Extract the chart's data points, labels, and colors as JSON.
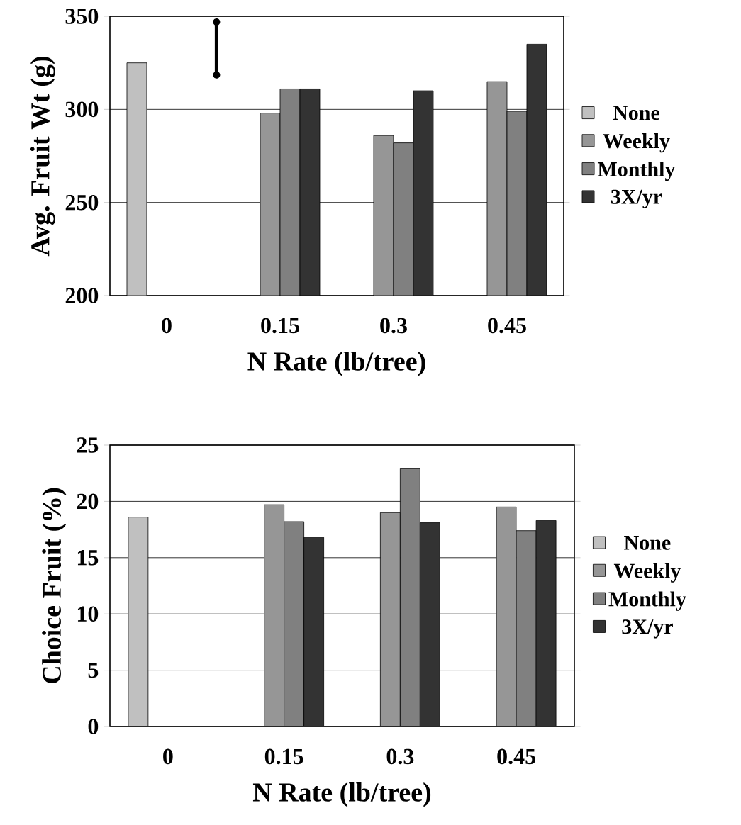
{
  "chart_data": [
    {
      "type": "bar",
      "xlabel": "N Rate (lb/tree)",
      "ylabel": "Avg. Fruit Wt (g)",
      "categories": [
        "0",
        "0.15",
        "0.3",
        "0.45"
      ],
      "series": [
        {
          "name": "None",
          "color": "#c0c0c0",
          "values": [
            325,
            null,
            null,
            null
          ]
        },
        {
          "name": "Weekly",
          "color": "#969696",
          "values": [
            null,
            298,
            286,
            315
          ]
        },
        {
          "name": "Monthly",
          "color": "#808080",
          "values": [
            null,
            311,
            282,
            299
          ]
        },
        {
          "name": "3X/yr",
          "color": "#333333",
          "values": [
            null,
            311,
            310,
            335
          ]
        }
      ],
      "ylim": [
        200,
        350
      ],
      "yticks": [
        200,
        250,
        300,
        350
      ],
      "grid": "y",
      "legend": "right"
    },
    {
      "type": "bar",
      "xlabel": "N Rate (lb/tree)",
      "ylabel": "Choice Fruit (%)",
      "categories": [
        "0",
        "0.15",
        "0.3",
        "0.45"
      ],
      "series": [
        {
          "name": "None",
          "color": "#c0c0c0",
          "values": [
            18.6,
            null,
            null,
            null
          ]
        },
        {
          "name": "Weekly",
          "color": "#969696",
          "values": [
            null,
            19.7,
            19.0,
            19.5
          ]
        },
        {
          "name": "Monthly",
          "color": "#808080",
          "values": [
            null,
            18.2,
            22.9,
            17.4
          ]
        },
        {
          "name": "3X/yr",
          "color": "#333333",
          "values": [
            null,
            16.8,
            18.1,
            18.3
          ]
        }
      ],
      "ylim": [
        0,
        25
      ],
      "yticks": [
        0,
        5,
        10,
        15,
        20,
        25
      ],
      "grid": "y",
      "legend": "right"
    }
  ]
}
